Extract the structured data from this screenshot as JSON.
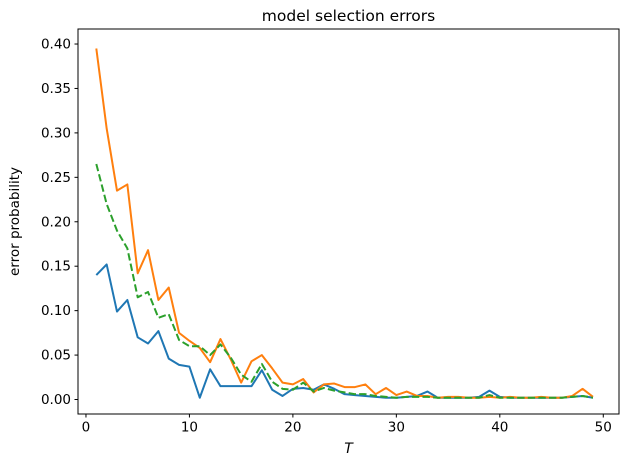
{
  "figure": {
    "background": "#ffffff"
  },
  "chart_data": {
    "type": "line",
    "title": "model selection errors",
    "xlabel": "T",
    "ylabel": "error probability",
    "grid": false,
    "legend": "none",
    "xlim": [
      -0.77,
      51.52
    ],
    "ylim": [
      -0.0163,
      0.4169
    ],
    "xticks": [
      0,
      10,
      20,
      30,
      40,
      50
    ],
    "yticks": [
      0.0,
      0.05,
      0.1,
      0.15,
      0.2,
      0.25,
      0.3,
      0.35,
      0.4
    ],
    "x": [
      1,
      2,
      3,
      4,
      5,
      6,
      7,
      8,
      9,
      10,
      11,
      12,
      13,
      14,
      15,
      16,
      17,
      18,
      19,
      20,
      21,
      22,
      23,
      24,
      25,
      26,
      27,
      28,
      29,
      30,
      31,
      32,
      33,
      34,
      35,
      36,
      37,
      38,
      39,
      40,
      41,
      42,
      43,
      44,
      45,
      46,
      47,
      48,
      49
    ],
    "series": [
      {
        "name": "series-blue",
        "color": "#1f77b4",
        "style": "solid",
        "values": [
          0.14,
          0.152,
          0.099,
          0.112,
          0.07,
          0.063,
          0.077,
          0.046,
          0.039,
          0.037,
          0.002,
          0.034,
          0.015,
          0.015,
          0.015,
          0.015,
          0.033,
          0.011,
          0.004,
          0.012,
          0.013,
          0.011,
          0.017,
          0.012,
          0.006,
          0.005,
          0.004,
          0.003,
          0.002,
          0.002,
          0.003,
          0.004,
          0.009,
          0.002,
          0.002,
          0.002,
          0.002,
          0.003,
          0.01,
          0.003,
          0.002,
          0.002,
          0.002,
          0.002,
          0.002,
          0.002,
          0.003,
          0.004,
          0.002
        ]
      },
      {
        "name": "series-orange",
        "color": "#ff7f0e",
        "style": "solid",
        "values": [
          0.395,
          0.305,
          0.235,
          0.242,
          0.142,
          0.168,
          0.112,
          0.126,
          0.075,
          0.066,
          0.058,
          0.042,
          0.068,
          0.045,
          0.019,
          0.043,
          0.05,
          0.035,
          0.019,
          0.017,
          0.023,
          0.008,
          0.017,
          0.018,
          0.014,
          0.014,
          0.017,
          0.006,
          0.013,
          0.005,
          0.009,
          0.004,
          0.004,
          0.002,
          0.003,
          0.003,
          0.002,
          0.002,
          0.003,
          0.002,
          0.003,
          0.002,
          0.002,
          0.003,
          0.002,
          0.002,
          0.004,
          0.012,
          0.003
        ]
      },
      {
        "name": "series-green",
        "color": "#2ca02c",
        "style": "dashed",
        "values": [
          0.265,
          0.22,
          0.19,
          0.17,
          0.115,
          0.121,
          0.092,
          0.096,
          0.067,
          0.06,
          0.06,
          0.05,
          0.062,
          0.047,
          0.028,
          0.02,
          0.04,
          0.02,
          0.012,
          0.011,
          0.019,
          0.009,
          0.013,
          0.01,
          0.008,
          0.006,
          0.006,
          0.004,
          0.003,
          0.002,
          0.003,
          0.003,
          0.003,
          0.002,
          0.002,
          0.002,
          0.002,
          0.002,
          0.005,
          0.002,
          0.002,
          0.002,
          0.002,
          0.002,
          0.002,
          0.002,
          0.003,
          0.004,
          0.002
        ]
      }
    ]
  },
  "plot": {
    "spine_color": "#000000",
    "tick_color": "#000000"
  }
}
